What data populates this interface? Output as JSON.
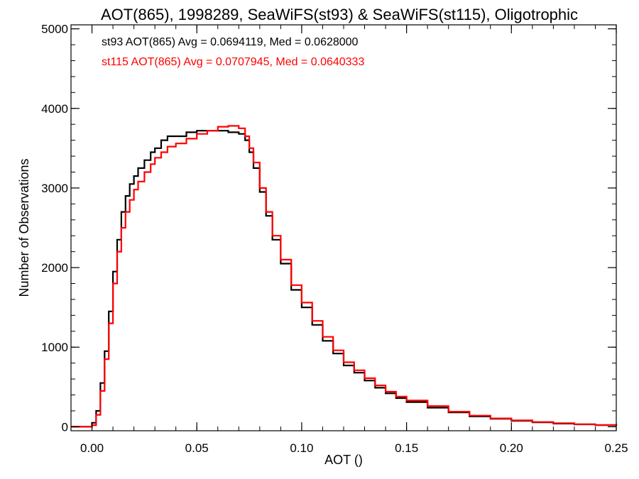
{
  "chart_data": {
    "type": "histogram-step",
    "title": "AOT(865), 1998289, SeaWiFS(st93) & SeaWiFS(st115), Oligotrophic",
    "xlabel": "AOT ()",
    "ylabel": "Number of Observations",
    "xlim": [
      -0.01,
      0.25
    ],
    "ylim": [
      -50,
      5050
    ],
    "xticks": [
      0.0,
      0.05,
      0.1,
      0.15,
      0.2,
      0.25
    ],
    "xtick_labels": [
      "0.00",
      "0.05",
      "0.10",
      "0.15",
      "0.20",
      "0.25"
    ],
    "yticks": [
      0,
      1000,
      2000,
      3000,
      4000,
      5000
    ],
    "ytick_labels": [
      "0",
      "1000",
      "2000",
      "3000",
      "4000",
      "5000"
    ],
    "grid": false,
    "legend_position": "top-left",
    "series": [
      {
        "name": "st93",
        "legend_text": "st93 AOT(865) Avg = 0.0694119, Med = 0.0628000",
        "color": "#000000",
        "x": [
          -0.01,
          -0.001,
          0.0,
          0.002,
          0.004,
          0.006,
          0.008,
          0.01,
          0.012,
          0.014,
          0.016,
          0.018,
          0.02,
          0.022,
          0.025,
          0.028,
          0.03,
          0.033,
          0.036,
          0.04,
          0.045,
          0.05,
          0.055,
          0.06,
          0.065,
          0.07,
          0.073,
          0.075,
          0.077,
          0.08,
          0.083,
          0.086,
          0.09,
          0.095,
          0.1,
          0.105,
          0.11,
          0.115,
          0.12,
          0.125,
          0.13,
          0.135,
          0.14,
          0.145,
          0.15,
          0.16,
          0.17,
          0.18,
          0.19,
          0.2,
          0.21,
          0.22,
          0.23,
          0.24,
          0.25
        ],
        "y": [
          0,
          0,
          50,
          200,
          550,
          950,
          1450,
          1950,
          2350,
          2700,
          2900,
          3050,
          3150,
          3250,
          3350,
          3450,
          3500,
          3600,
          3650,
          3650,
          3700,
          3720,
          3720,
          3720,
          3700,
          3680,
          3600,
          3450,
          3250,
          2950,
          2650,
          2350,
          2050,
          1720,
          1500,
          1280,
          1080,
          920,
          770,
          680,
          580,
          490,
          420,
          360,
          310,
          240,
          180,
          130,
          100,
          75,
          55,
          40,
          30,
          20,
          15
        ]
      },
      {
        "name": "st115",
        "legend_text": "st115 AOT(865) Avg = 0.0707945, Med = 0.0640333",
        "color": "#ff0000",
        "x": [
          -0.01,
          -0.001,
          0.0,
          0.002,
          0.004,
          0.006,
          0.008,
          0.01,
          0.012,
          0.014,
          0.016,
          0.018,
          0.02,
          0.022,
          0.025,
          0.028,
          0.03,
          0.033,
          0.036,
          0.04,
          0.045,
          0.05,
          0.055,
          0.06,
          0.065,
          0.07,
          0.073,
          0.075,
          0.077,
          0.08,
          0.083,
          0.086,
          0.09,
          0.095,
          0.1,
          0.105,
          0.11,
          0.115,
          0.12,
          0.125,
          0.13,
          0.135,
          0.14,
          0.145,
          0.15,
          0.16,
          0.17,
          0.18,
          0.19,
          0.2,
          0.21,
          0.22,
          0.23,
          0.24,
          0.25
        ],
        "y": [
          0,
          0,
          20,
          150,
          450,
          850,
          1300,
          1800,
          2200,
          2500,
          2700,
          2850,
          2980,
          3080,
          3200,
          3300,
          3380,
          3450,
          3520,
          3560,
          3620,
          3680,
          3720,
          3770,
          3780,
          3750,
          3650,
          3500,
          3320,
          3000,
          2700,
          2400,
          2100,
          1780,
          1560,
          1330,
          1130,
          960,
          810,
          710,
          610,
          520,
          440,
          380,
          330,
          260,
          190,
          140,
          105,
          80,
          60,
          45,
          32,
          22,
          15
        ]
      }
    ]
  }
}
